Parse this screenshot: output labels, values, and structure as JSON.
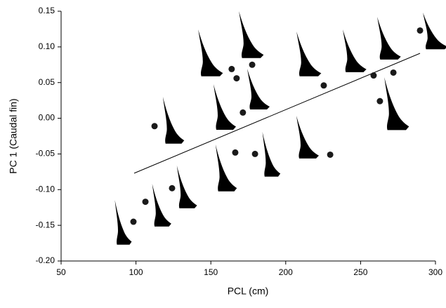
{
  "chart_data": {
    "type": "scatter",
    "x_label": "PCL (cm)",
    "y_label": "PC 1 (Caudal fin)",
    "xlim": [
      50,
      300
    ],
    "xticks": [
      50,
      100,
      150,
      200,
      250,
      300
    ],
    "ylim": [
      -0.2,
      0.15
    ],
    "yticks": [
      {
        "value": -0.2,
        "label": "-0.20"
      },
      -0.15,
      {
        "value": -0.1,
        "label": "-0.10"
      },
      -0.05,
      {
        "value": 0,
        "label": "0.00"
      },
      0.05,
      {
        "value": 0.1,
        "label": "0.10"
      },
      0.15
    ],
    "color": "#1a1a1a",
    "x": [
      98.3,
      106.3,
      124.1,
      112.4,
      166.3,
      179.5,
      229.7,
      171.4,
      167.2,
      163.9,
      177.6,
      225.4,
      258.7,
      271.9,
      262.9,
      289.7
    ],
    "values": [
      -0.145,
      -0.117,
      -0.098,
      -0.011,
      -0.048,
      -0.05,
      -0.051,
      0.008,
      0.056,
      0.069,
      0.075,
      0.046,
      0.06,
      0.064,
      0.024,
      0.123
    ],
    "fit": {
      "x": [
        98.8,
        289.7
      ],
      "values": [
        -0.077,
        0.091
      ]
    }
  }
}
